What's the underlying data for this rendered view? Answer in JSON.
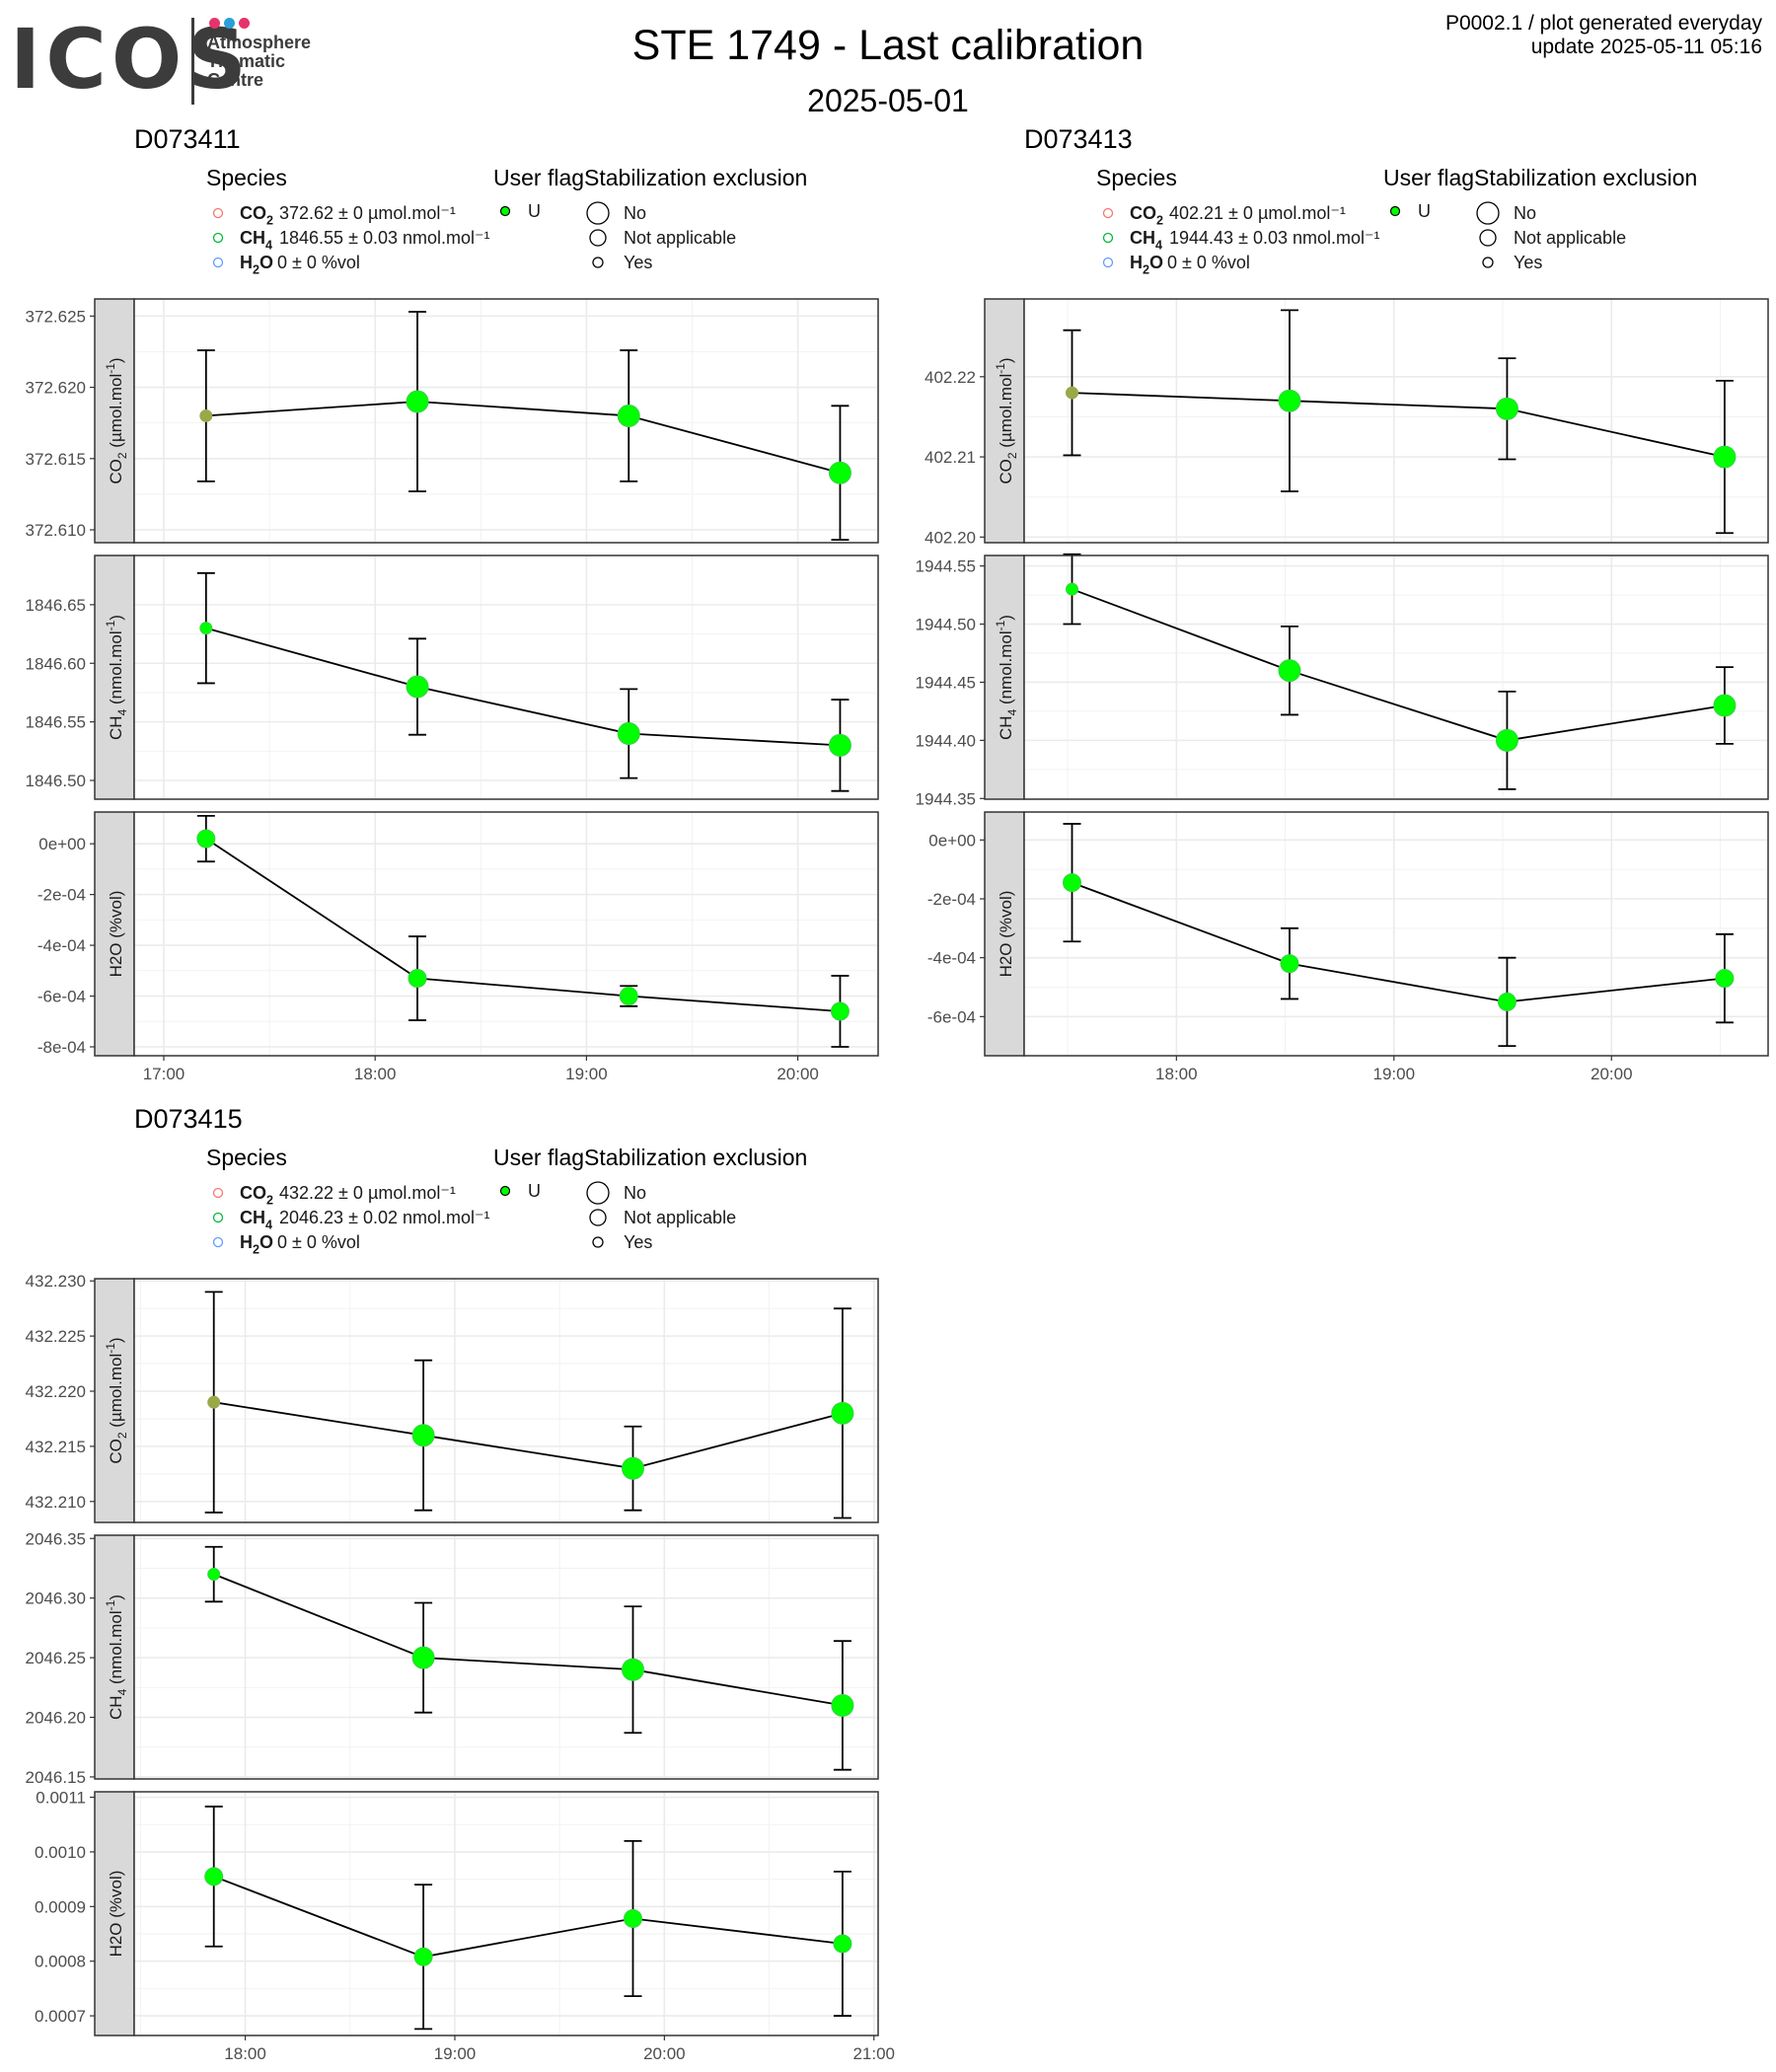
{
  "logo": {
    "wordmark": "ICOS",
    "subtitle_lines": [
      "Atmosphere",
      "Thematic",
      "Centre"
    ],
    "dot_colors": [
      "#e6336b",
      "#2a9fd8",
      "#e6336b"
    ]
  },
  "header": {
    "title": "STE 1749 - Last calibration",
    "subtitle": "2025-05-01",
    "meta_line1": "P0002.1 / plot generated everyday",
    "meta_line2": "update  2025-05-11 05:16"
  },
  "legend_titles": {
    "species": "Species",
    "user_flag": "User flag",
    "stabilization": "Stabilization exclusion"
  },
  "flag_labels": [
    "U"
  ],
  "stab_labels": [
    "No",
    "Not applicable",
    "Yes"
  ],
  "colors": {
    "co2": "#f8766d",
    "ch4": "#00ba38",
    "h2o": "#619cff",
    "point": "#00ff00",
    "grid": "#ebebeb",
    "strip": "#d9d9d9"
  },
  "chart_data": [
    {
      "type": "line",
      "title": "D073411",
      "legend_species": [
        {
          "name": "CO2",
          "text": "372.62 ± 0 µmol.mol⁻¹"
        },
        {
          "name": "CH4",
          "text": "1846.55 ± 0.03 nmol.mol⁻¹"
        },
        {
          "name": "H2O",
          "text": "0 ± 0 %vol"
        }
      ],
      "x_ticks": [
        "17:00",
        "18:00",
        "19:00",
        "20:00"
      ],
      "x_tick_hours": [
        17,
        18,
        19,
        20
      ],
      "xlim": [
        16.86,
        20.38
      ],
      "x": [
        17.2,
        18.2,
        19.2,
        20.2
      ],
      "panels": [
        {
          "label": "CO2 (µmol.mol-1)",
          "ylim": [
            372.6091,
            372.6262
          ],
          "ticks": [
            372.61,
            372.615,
            372.62,
            372.625
          ],
          "tick_labels": [
            "372.610",
            "372.615",
            "372.620",
            "372.625"
          ],
          "y": [
            372.618,
            372.619,
            372.618,
            372.614
          ],
          "err": [
            0.0046,
            0.0063,
            0.0046,
            0.0047
          ],
          "size": [
            1,
            3,
            3,
            3
          ],
          "fill": [
            "co2",
            "point",
            "point",
            "point"
          ]
        },
        {
          "label": "CH4 (nmol.mol-1)",
          "ylim": [
            1846.484,
            1846.692
          ],
          "ticks": [
            1846.5,
            1846.55,
            1846.6,
            1846.65
          ],
          "tick_labels": [
            "1846.50",
            "1846.55",
            "1846.60",
            "1846.65"
          ],
          "y": [
            1846.63,
            1846.58,
            1846.54,
            1846.53
          ],
          "err": [
            0.047,
            0.041,
            0.038,
            0.039
          ],
          "size": [
            1,
            3,
            3,
            3
          ],
          "fill": [
            "point",
            "point",
            "point",
            "point"
          ]
        },
        {
          "label": "H2O (%vol)",
          "ylim": [
            -0.000835,
            0.000125
          ],
          "ticks": [
            -0.0008,
            -0.0006,
            -0.0004,
            -0.0002,
            0
          ],
          "tick_labels": [
            "-8e-04",
            "-6e-04",
            "-4e-04",
            "-2e-04",
            "0e+00"
          ],
          "y": [
            2e-05,
            -0.00053,
            -0.0006,
            -0.00066
          ],
          "err": [
            9e-05,
            0.000165,
            4e-05,
            0.00014
          ],
          "size": [
            2,
            2,
            2,
            2
          ],
          "fill": [
            "point",
            "point",
            "point",
            "point"
          ]
        }
      ]
    },
    {
      "type": "line",
      "title": "D073413",
      "legend_species": [
        {
          "name": "CO2",
          "text": "402.21 ± 0 µmol.mol⁻¹"
        },
        {
          "name": "CH4",
          "text": "1944.43 ± 0.03 nmol.mol⁻¹"
        },
        {
          "name": "H2O",
          "text": "0 ± 0 %vol"
        }
      ],
      "x_ticks": [
        "18:00",
        "19:00",
        "20:00"
      ],
      "x_tick_hours": [
        18,
        19,
        20
      ],
      "xlim": [
        17.3,
        20.72
      ],
      "x": [
        17.52,
        18.52,
        19.52,
        20.52
      ],
      "panels": [
        {
          "label": "CO2 (µmol.mol-1)",
          "ylim": [
            402.1993,
            402.2297
          ],
          "ticks": [
            402.2,
            402.21,
            402.22
          ],
          "tick_labels": [
            "402.20",
            "402.21",
            "402.22"
          ],
          "y": [
            402.218,
            402.217,
            402.216,
            402.21
          ],
          "err": [
            0.0078,
            0.0113,
            0.0063,
            0.0095
          ],
          "size": [
            1,
            3,
            3,
            3
          ],
          "fill": [
            "co2",
            "point",
            "point",
            "point"
          ]
        },
        {
          "label": "CH4 (nmol.mol-1)",
          "ylim": [
            1944.3494,
            1944.559
          ],
          "ticks": [
            1944.35,
            1944.4,
            1944.45,
            1944.5,
            1944.55
          ],
          "tick_labels": [
            "1944.35",
            "1944.40",
            "1944.45",
            "1944.50",
            "1944.55"
          ],
          "y": [
            1944.53,
            1944.46,
            1944.4,
            1944.43
          ],
          "err": [
            0.03,
            0.038,
            0.042,
            0.033
          ],
          "size": [
            1,
            3,
            3,
            3
          ],
          "fill": [
            "point",
            "point",
            "point",
            "point"
          ]
        },
        {
          "label": "H2O (%vol)",
          "ylim": [
            -0.000733,
            9.5e-05
          ],
          "ticks": [
            -0.0006,
            -0.0004,
            -0.0002,
            0
          ],
          "tick_labels": [
            "-6e-04",
            "-4e-04",
            "-2e-04",
            "0e+00"
          ],
          "y": [
            -0.000145,
            -0.00042,
            -0.00055,
            -0.00047
          ],
          "err": [
            0.0002,
            0.00012,
            0.00015,
            0.00015
          ],
          "size": [
            2,
            2,
            2,
            2
          ],
          "fill": [
            "point",
            "point",
            "point",
            "point"
          ]
        }
      ]
    },
    {
      "type": "line",
      "title": "D073415",
      "legend_species": [
        {
          "name": "CO2",
          "text": "432.22 ± 0 µmol.mol⁻¹"
        },
        {
          "name": "CH4",
          "text": "2046.23 ± 0.02 nmol.mol⁻¹"
        },
        {
          "name": "H2O",
          "text": "0 ± 0 %vol"
        }
      ],
      "x_ticks": [
        "18:00",
        "19:00",
        "20:00",
        "21:00"
      ],
      "x_tick_hours": [
        18,
        19,
        20,
        21
      ],
      "xlim": [
        17.47,
        21.02
      ],
      "x": [
        17.85,
        18.85,
        19.85,
        20.85
      ],
      "panels": [
        {
          "label": "CO2 (µmol.mol-1)",
          "ylim": [
            432.2081,
            432.2302
          ],
          "ticks": [
            432.21,
            432.215,
            432.22,
            432.225,
            432.23
          ],
          "tick_labels": [
            "432.210",
            "432.215",
            "432.220",
            "432.225",
            "432.230"
          ],
          "y": [
            432.219,
            432.216,
            432.213,
            432.218
          ],
          "err": [
            0.01,
            0.0068,
            0.0038,
            0.0095
          ],
          "size": [
            1,
            3,
            3,
            3
          ],
          "fill": [
            "co2",
            "point",
            "point",
            "point"
          ]
        },
        {
          "label": "CH4 (nmol.mol-1)",
          "ylim": [
            2046.1483,
            2046.3527
          ],
          "ticks": [
            2046.15,
            2046.2,
            2046.25,
            2046.3,
            2046.35
          ],
          "tick_labels": [
            "2046.15",
            "2046.20",
            "2046.25",
            "2046.30",
            "2046.35"
          ],
          "y": [
            2046.32,
            2046.25,
            2046.24,
            2046.21
          ],
          "err": [
            0.023,
            0.046,
            0.053,
            0.054
          ],
          "size": [
            1,
            3,
            3,
            3
          ],
          "fill": [
            "point",
            "point",
            "point",
            "point"
          ]
        },
        {
          "label": "H2O (%vol)",
          "ylim": [
            0.000664,
            0.00111
          ],
          "ticks": [
            0.0007,
            0.0008,
            0.0009,
            0.001,
            0.0011
          ],
          "tick_labels": [
            "0.0007",
            "0.0008",
            "0.0009",
            "0.0010",
            "0.0011"
          ],
          "y": [
            0.000955,
            0.000808,
            0.000878,
            0.000832
          ],
          "err": [
            0.000128,
            0.000132,
            0.000142,
            0.000132
          ],
          "size": [
            2,
            2,
            2,
            2
          ],
          "fill": [
            "point",
            "point",
            "point",
            "point"
          ]
        }
      ]
    }
  ]
}
